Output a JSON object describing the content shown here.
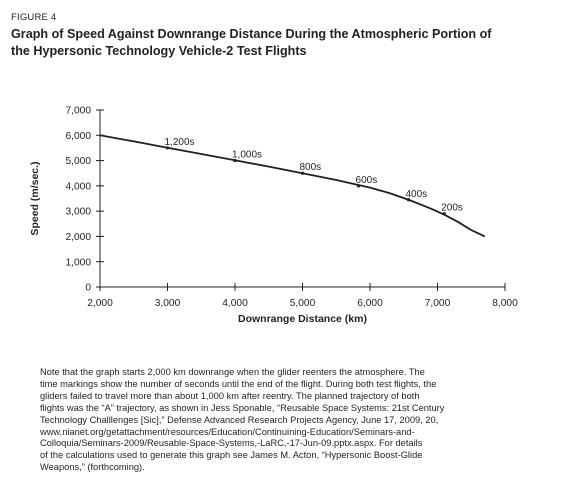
{
  "figure_label": "FIGURE 4",
  "title_lines": [
    "Graph of Speed Against Downrange Distance During the Atmospheric Portion of",
    "the Hypersonic Technology Vehicle-2 Test Flights"
  ],
  "chart_data": {
    "type": "line",
    "xlabel": "Downrange Distance (km)",
    "ylabel": "Speed (m/sec.)",
    "xlim": [
      2000,
      8000
    ],
    "ylim": [
      0,
      7000
    ],
    "x_ticks": [
      "2,000",
      "3,000",
      "4,000",
      "5,000",
      "6,000",
      "7,000",
      "8,000"
    ],
    "y_ticks": [
      "0",
      "1,000",
      "2,000",
      "3,000",
      "4,000",
      "5,000",
      "6,000",
      "7,000"
    ],
    "x_tick_values": [
      2000,
      3000,
      4000,
      5000,
      6000,
      7000,
      8000
    ],
    "y_tick_values": [
      0,
      1000,
      2000,
      3000,
      4000,
      5000,
      6000,
      7000
    ],
    "grid": false,
    "series": [
      {
        "x": [
          2000,
          2500,
          3000,
          3500,
          4000,
          4500,
          5000,
          5500,
          6000,
          6300,
          6600,
          6900,
          7100,
          7300,
          7500,
          7700
        ],
        "y": [
          6000,
          5760,
          5510,
          5260,
          5010,
          4760,
          4500,
          4230,
          3930,
          3700,
          3420,
          3100,
          2860,
          2580,
          2250,
          2000
        ]
      }
    ],
    "annotations": [
      {
        "text": "1,200s",
        "x": 3000,
        "y": 5500
      },
      {
        "text": "1,000s",
        "x": 4000,
        "y": 5000
      },
      {
        "text": "800s",
        "x": 5000,
        "y": 4500
      },
      {
        "text": "600s",
        "x": 5830,
        "y": 4000
      },
      {
        "text": "400s",
        "x": 6570,
        "y": 3450
      },
      {
        "text": "200s",
        "x": 7100,
        "y": 2900
      }
    ]
  },
  "note_lines": [
    "Note that the graph starts 2,000 km downrange when the glider reenters the atmosphere. The",
    "time markings show the number of seconds until the end of the flight. During both test flights, the",
    "gliders failed to travel more than about 1,000 km after reentry. The planned trajectory of both",
    "flights was the “A” trajectory, as shown in Jess Sponable, “Reusable Space Systems: 21st Century",
    "Technology Challlenges [Sic],” Defense Advanced Research Projects Agency, June 17, 2009, 20,",
    "www.nianet.org/getattachment/resources/Education/Continuining-Education/Seminars-and-",
    "Colloquia/Seminars-2009/Reusable-Space-Systems,-LaRC,-17-Jun-09.pptx.aspx. For details",
    "of the calculations used to generate this graph see James M. Acton, “Hypersonic Boost-Glide",
    "Weapons,” (forthcoming)."
  ]
}
